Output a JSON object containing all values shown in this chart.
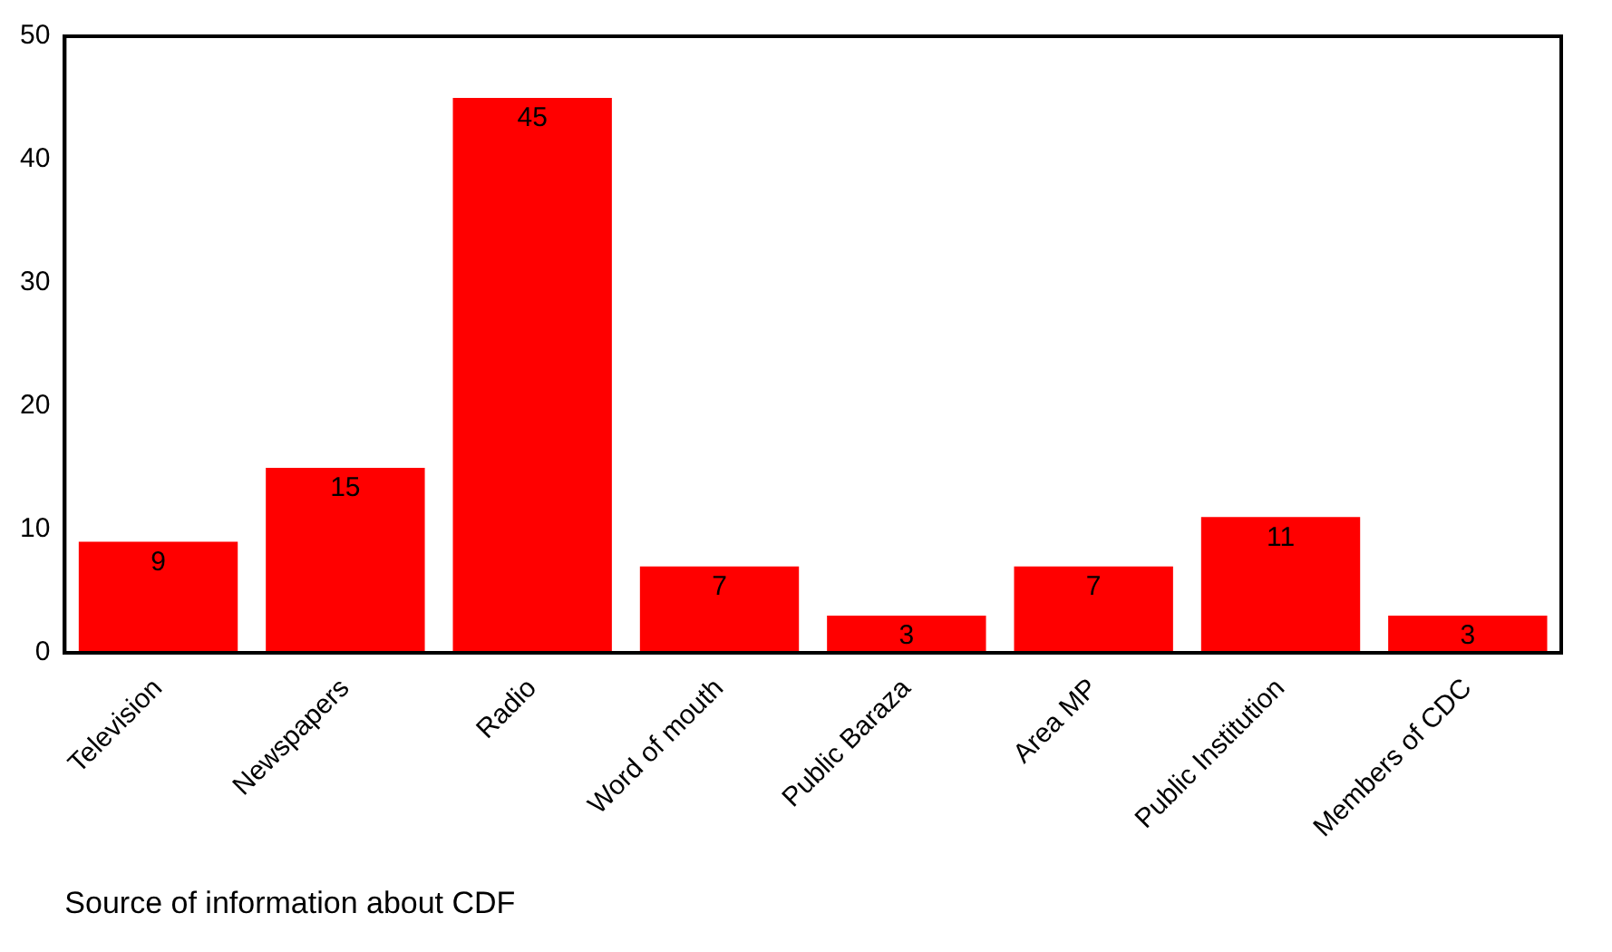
{
  "chart_data": {
    "type": "bar",
    "xlabel": "Source of information about CDF",
    "categories": [
      "Television",
      "Newspapers",
      "Radio",
      "Word of mouth",
      "Public Baraza",
      "Area MP",
      "Public Institution",
      "Members of CDC"
    ],
    "values": [
      9,
      15,
      45,
      7,
      3,
      7,
      11,
      3
    ],
    "color": "#ff0000",
    "ylim": [
      0,
      50
    ],
    "yticks": [
      0,
      10,
      20,
      30,
      40,
      50
    ],
    "grid": false,
    "legend": false,
    "data_labels": true
  }
}
